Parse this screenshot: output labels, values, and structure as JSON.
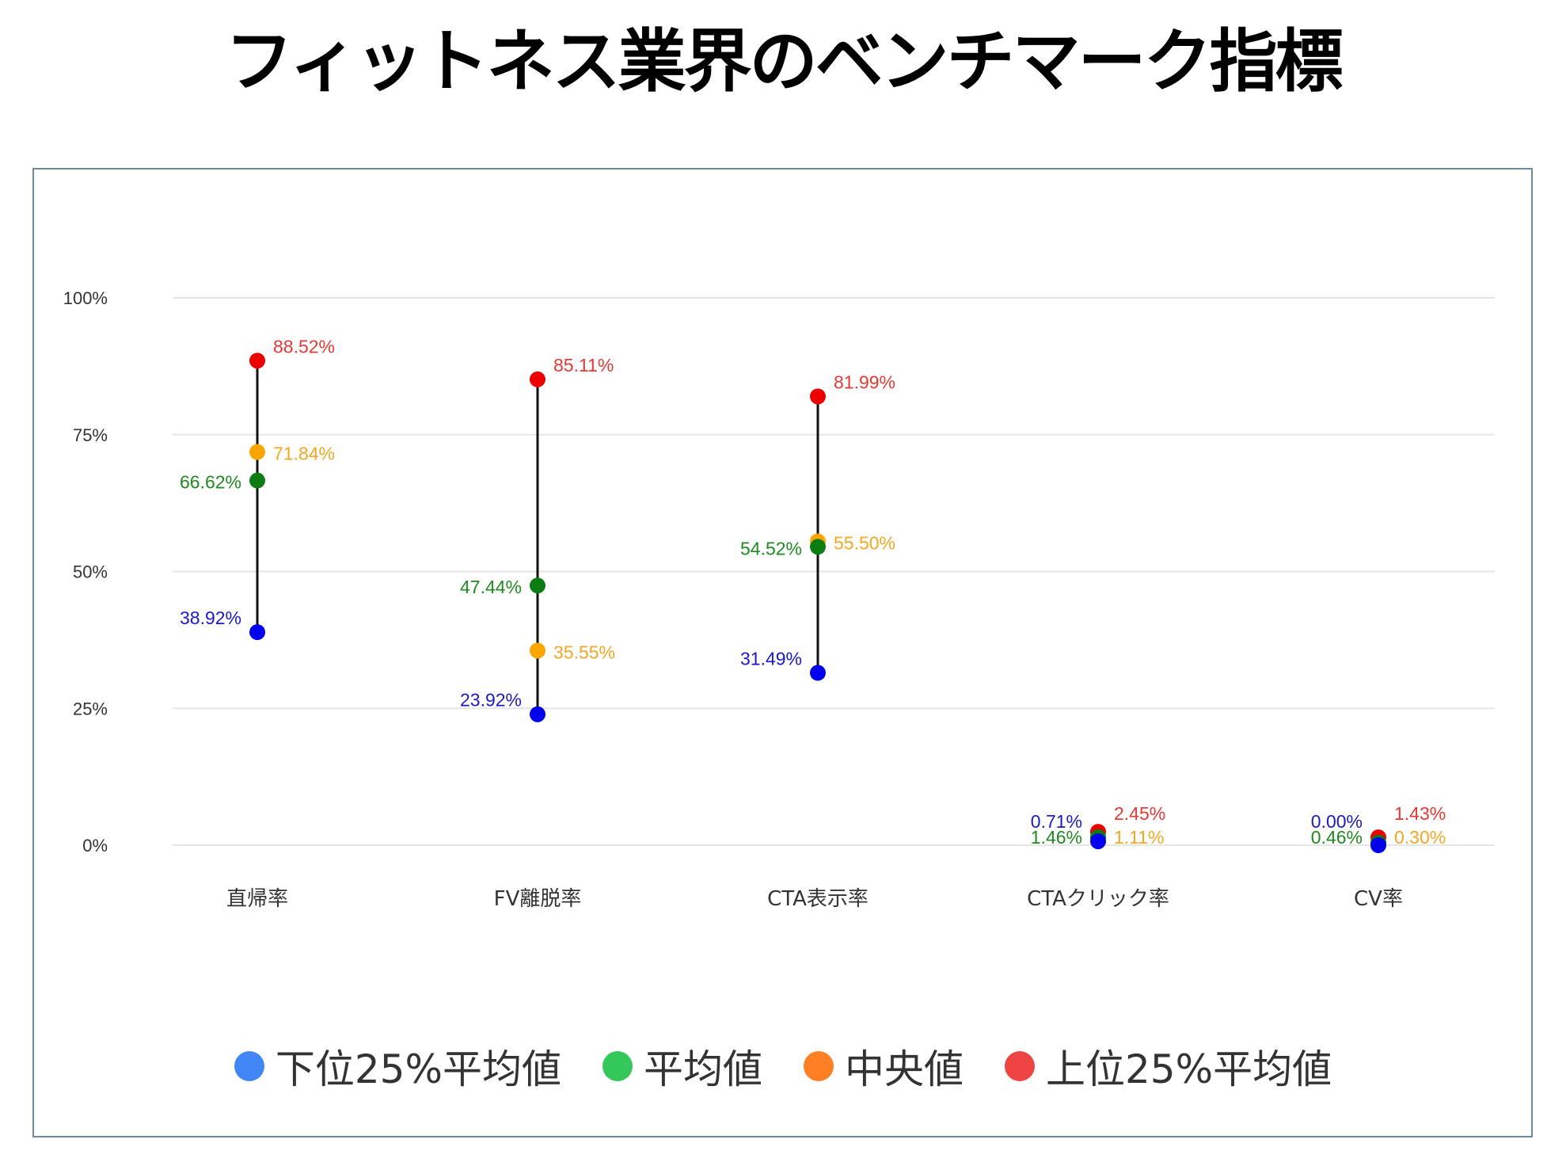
{
  "title": "フィットネス業界のベンチマーク指標",
  "chart_data": {
    "type": "range-dot",
    "title": "フィットネス業界のベンチマーク指標",
    "xlabel": "",
    "ylabel": "",
    "ylim": [
      0,
      100
    ],
    "yticks": [
      {
        "value": 0,
        "label": "0%"
      },
      {
        "value": 25,
        "label": "25%"
      },
      {
        "value": 50,
        "label": "50%"
      },
      {
        "value": 75,
        "label": "75%"
      },
      {
        "value": 100,
        "label": "100%"
      }
    ],
    "grid": true,
    "legend_position": "bottom",
    "categories": [
      "直帰率",
      "FV離脱率",
      "CTA表示率",
      "CTAクリック率",
      "CV率"
    ],
    "series": [
      {
        "key": "lower",
        "name": "下位25%平均値",
        "legend_color": "#4285f4",
        "point_color": "#0000ee",
        "label_color": "#1a1acc",
        "values": [
          38.92,
          23.92,
          31.49,
          0.71,
          0.0
        ],
        "labels": [
          "38.92%",
          "23.92%",
          "31.49%",
          "0.71%",
          "0.00%"
        ]
      },
      {
        "key": "mean",
        "name": "平均値",
        "legend_color": "#34c759",
        "point_color": "#0b7d12",
        "label_color": "#1f8a1f",
        "values": [
          66.62,
          47.44,
          54.52,
          1.46,
          0.46
        ],
        "labels": [
          "66.62%",
          "47.44%",
          "54.52%",
          "1.46%",
          "0.46%"
        ]
      },
      {
        "key": "median",
        "name": "中央値",
        "legend_color": "#ff7f24",
        "point_color": "#ffa500",
        "label_color": "#f5a623",
        "values": [
          71.84,
          35.55,
          55.5,
          1.11,
          0.3
        ],
        "labels": [
          "71.84%",
          "35.55%",
          "55.50%",
          "1.11%",
          "0.30%"
        ]
      },
      {
        "key": "upper",
        "name": "上位25%平均値",
        "legend_color": "#ef4444",
        "point_color": "#ee0000",
        "label_color": "#e53935",
        "values": [
          88.52,
          85.11,
          81.99,
          2.45,
          1.43
        ],
        "labels": [
          "88.52%",
          "85.11%",
          "81.99%",
          "2.45%",
          "1.43%"
        ]
      }
    ]
  }
}
